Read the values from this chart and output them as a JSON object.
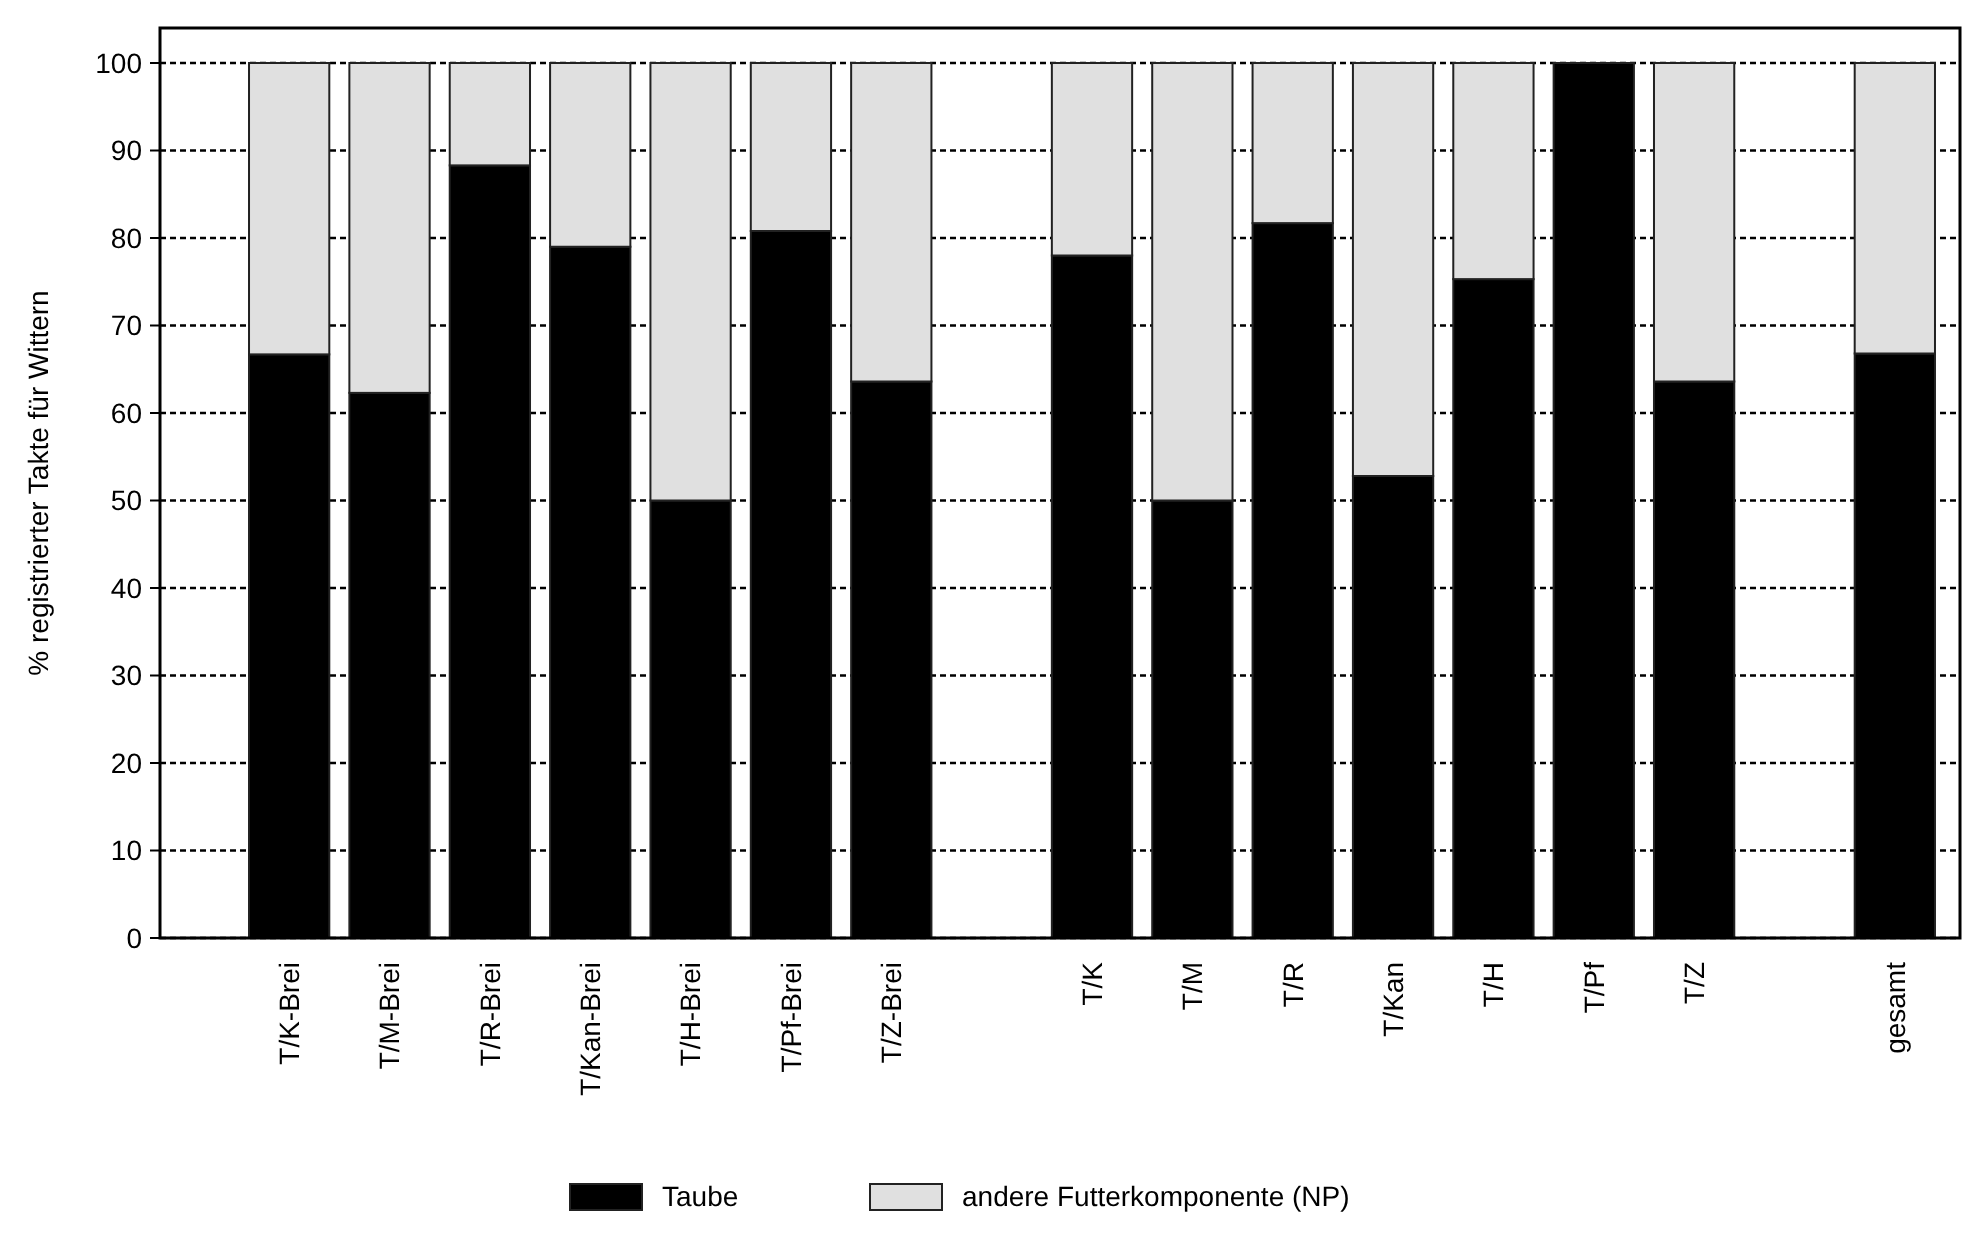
{
  "chart_data": {
    "type": "bar",
    "stacked": true,
    "ylabel": "% registrierter Takte für Wittern",
    "categories": [
      "T/K-Brei",
      "T/M-Brei",
      "T/R-Brei",
      "T/Kan-Brei",
      "T/H-Brei",
      "T/Pf-Brei",
      "T/Z-Brei",
      null,
      "T/K",
      "T/M",
      "T/R",
      "T/Kan",
      "T/H",
      "T/Pf",
      "T/Z",
      null,
      "gesamt"
    ],
    "series": [
      {
        "name": "Taube",
        "color": "#000000",
        "values": [
          66.7,
          62.3,
          88.3,
          79,
          50,
          80.8,
          63.6,
          null,
          78,
          50,
          81.7,
          52.8,
          75.3,
          100,
          63.6,
          null,
          66.8
        ]
      },
      {
        "name": "andere Futterkomponente (NP)",
        "color": "#e0e0e0",
        "values": [
          33.3,
          37.7,
          11.7,
          21,
          50,
          19.2,
          36.4,
          null,
          22,
          50,
          18.3,
          47.2,
          24.7,
          0,
          36.4,
          null,
          33.2
        ]
      }
    ],
    "ylim": [
      0,
      104
    ],
    "yticks": [
      0,
      10,
      20,
      30,
      40,
      50,
      60,
      70,
      80,
      90,
      100
    ],
    "grid": "y",
    "legend": "bottom"
  }
}
